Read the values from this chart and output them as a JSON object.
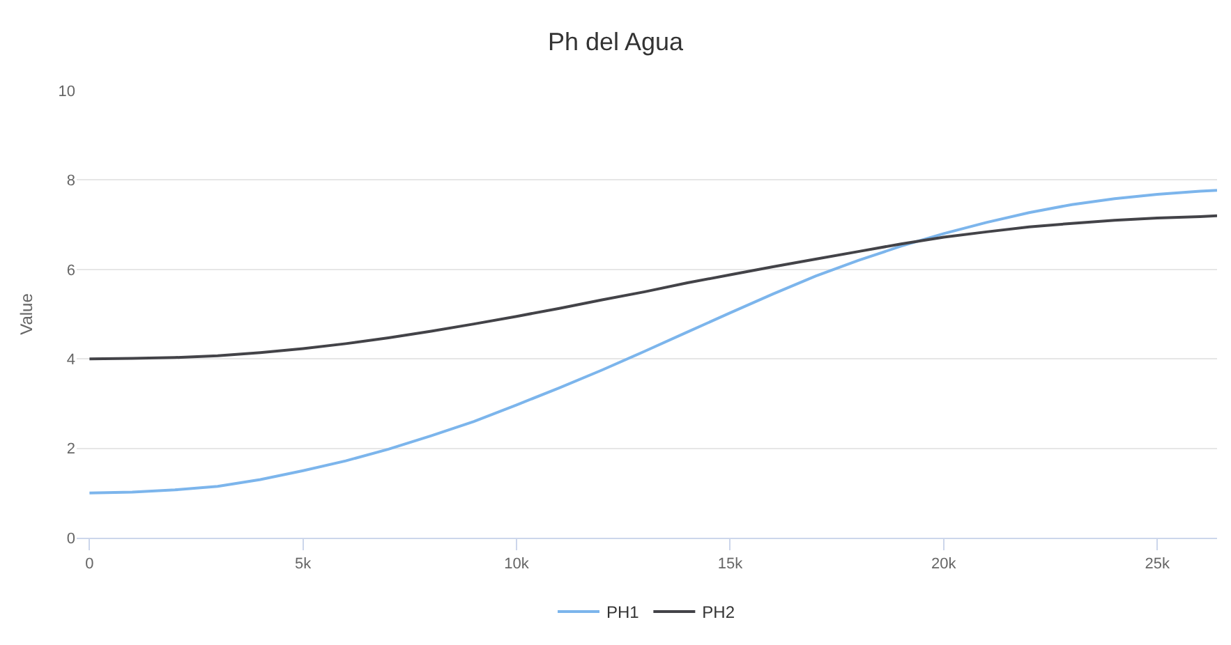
{
  "chart_data": {
    "type": "line",
    "title": "Ph del Agua",
    "ylabel": "Value",
    "x": [
      0,
      1000,
      2000,
      3000,
      4000,
      5000,
      6000,
      7000,
      8000,
      9000,
      10000,
      11000,
      12000,
      13000,
      14000,
      15000,
      16000,
      17000,
      18000,
      19000,
      20000,
      21000,
      22000,
      23000,
      24000,
      25000,
      26000,
      26400
    ],
    "series": [
      {
        "name": "PH1",
        "color": "#7cb5ec",
        "values": [
          1.0,
          1.02,
          1.07,
          1.15,
          1.3,
          1.5,
          1.72,
          1.98,
          2.28,
          2.6,
          2.97,
          3.35,
          3.75,
          4.17,
          4.6,
          5.03,
          5.45,
          5.85,
          6.2,
          6.52,
          6.8,
          7.05,
          7.27,
          7.45,
          7.58,
          7.68,
          7.75,
          7.77
        ]
      },
      {
        "name": "PH2",
        "color": "#434348",
        "values": [
          4.0,
          4.01,
          4.03,
          4.07,
          4.14,
          4.23,
          4.34,
          4.47,
          4.62,
          4.78,
          4.95,
          5.13,
          5.32,
          5.5,
          5.7,
          5.88,
          6.06,
          6.23,
          6.4,
          6.57,
          6.72,
          6.84,
          6.95,
          7.03,
          7.1,
          7.15,
          7.18,
          7.2
        ]
      }
    ],
    "xlim": [
      -300,
      26400
    ],
    "xticks": [
      {
        "value": 0,
        "label": "0"
      },
      {
        "value": 5000,
        "label": "5k"
      },
      {
        "value": 10000,
        "label": "10k"
      },
      {
        "value": 15000,
        "label": "15k"
      },
      {
        "value": 20000,
        "label": "20k"
      },
      {
        "value": 25000,
        "label": "25k"
      }
    ],
    "ylim": [
      0,
      10
    ],
    "yticks": [
      0,
      2,
      4,
      6,
      8,
      10
    ],
    "grid": "y",
    "legend": "bottom",
    "marker": "none",
    "line_style": "solid"
  }
}
